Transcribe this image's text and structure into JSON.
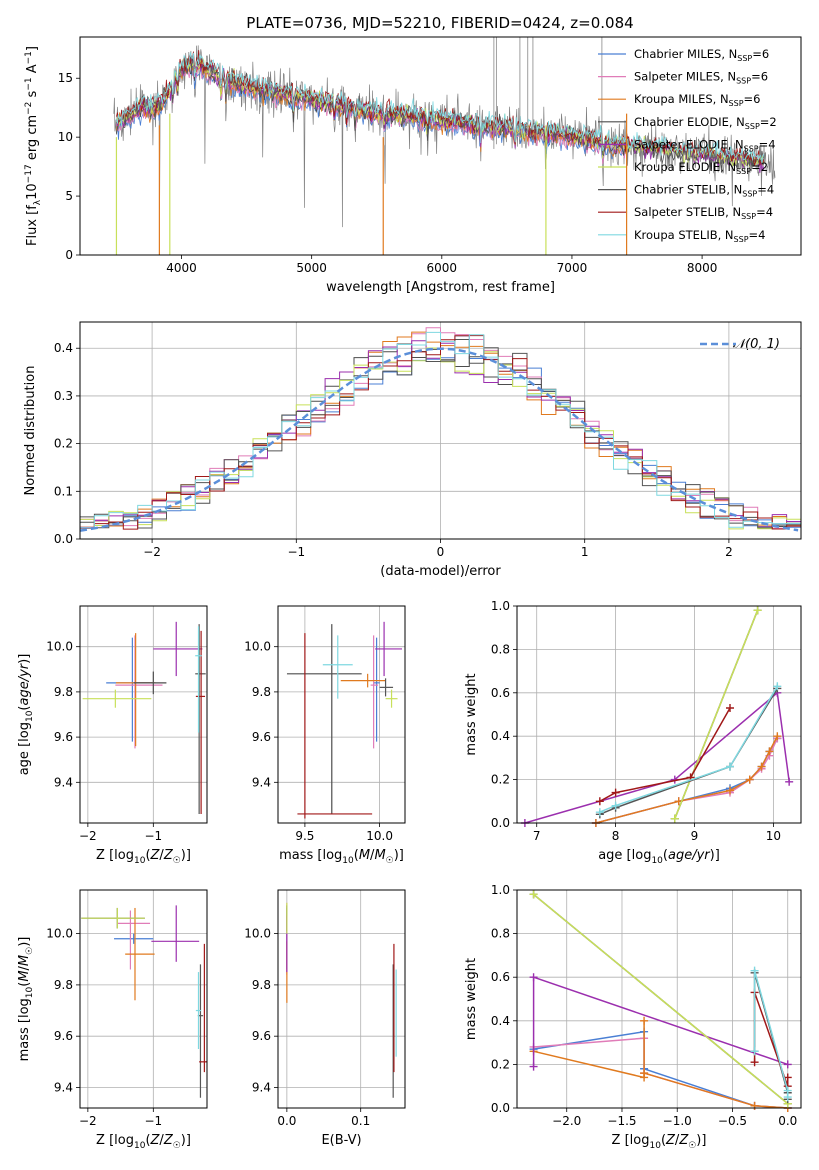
{
  "figure_title": "PLATE=0736, MJD=52210, FIBERID=0424, z=0.084",
  "colors": {
    "Chabrier MILES": "#4a7fd4",
    "Salpeter MILES": "#e07cb8",
    "Kroupa MILES": "#e07a1f",
    "Chabrier ELODIE": "#4d4d4d",
    "Salpeter ELODIE": "#9b2fae",
    "Kroupa ELODIE": "#c8e05a",
    "Chabrier STELIB": "#555555",
    "Salpeter STELIB": "#a01818",
    "Kroupa STELIB": "#7fd8e0"
  },
  "legend_spectrum": [
    {
      "name": "Chabrier MILES",
      "nssp": "6"
    },
    {
      "name": "Salpeter MILES",
      "nssp": "6"
    },
    {
      "name": "Kroupa MILES",
      "nssp": "6"
    },
    {
      "name": "Chabrier ELODIE",
      "nssp": "2"
    },
    {
      "name": "Salpeter ELODIE",
      "nssp": "4"
    },
    {
      "name": "Kroupa ELODIE",
      "nssp": "2"
    },
    {
      "name": "Chabrier STELIB",
      "nssp": "4"
    },
    {
      "name": "Salpeter STELIB",
      "nssp": "4"
    },
    {
      "name": "Kroupa STELIB",
      "nssp": "4"
    }
  ],
  "chart_data": [
    {
      "id": "spectrum",
      "type": "line",
      "ylabel": "Flux [f_λ10^-17 erg cm^-2 s^-1 A^-1]",
      "xlabel": "wavelength [Angstrom, rest frame]",
      "xlim": [
        3220,
        8760
      ],
      "ylim": [
        0,
        18.5
      ],
      "xticks": [
        4000,
        5000,
        6000,
        7000,
        8000
      ],
      "yticks": [
        0,
        5,
        10,
        15
      ],
      "data_continuum": [
        [
          3480,
          11.0
        ],
        [
          3600,
          11.8
        ],
        [
          3700,
          12.6
        ],
        [
          3800,
          12.3
        ],
        [
          3900,
          13.8
        ],
        [
          4000,
          15.8
        ],
        [
          4100,
          16.3
        ],
        [
          4200,
          15.6
        ],
        [
          4300,
          15.1
        ],
        [
          4500,
          14.3
        ],
        [
          4700,
          13.8
        ],
        [
          4900,
          13.4
        ],
        [
          5100,
          13.0
        ],
        [
          5300,
          12.5
        ],
        [
          5500,
          12.1
        ],
        [
          5800,
          11.7
        ],
        [
          6000,
          11.4
        ],
        [
          6300,
          11.0
        ],
        [
          6600,
          10.6
        ],
        [
          6900,
          10.2
        ],
        [
          7200,
          9.6
        ],
        [
          7500,
          9.1
        ],
        [
          7800,
          8.7
        ],
        [
          8000,
          8.5
        ],
        [
          8200,
          8.2
        ],
        [
          8400,
          7.9
        ],
        [
          8560,
          7.7
        ]
      ],
      "absorption_lines": [
        3934,
        3969,
        4102,
        4304,
        4341,
        4861,
        5175,
        5270,
        5335,
        5560,
        5890,
        6300,
        6563,
        6800,
        7240
      ],
      "model_dropouts": [
        3500,
        3830,
        3910,
        5550,
        6800,
        7420
      ]
    },
    {
      "id": "residuals",
      "type": "area",
      "ylabel": "Normed distribution",
      "xlabel": "(data-model)/error",
      "xlim": [
        -2.5,
        2.5
      ],
      "ylim": [
        0,
        0.455
      ],
      "xticks": [
        -2,
        -1,
        0,
        1,
        2
      ],
      "yticks": [
        0.0,
        0.1,
        0.2,
        0.3,
        0.4
      ],
      "bin_width": 0.1,
      "reference_curve": "N(0,1)"
    },
    {
      "id": "age-vs-Z",
      "type": "scatter",
      "ylabel": "age  [log10(age/yr)]",
      "xlabel": "Z [log10(Z/Z☉)]",
      "xlim": [
        -2.12,
        -0.18
      ],
      "ylim": [
        9.22,
        10.18
      ],
      "xticks": [
        -2,
        -1
      ],
      "yticks": [
        9.4,
        9.6,
        9.8,
        10.0
      ],
      "points": [
        {
          "series": "Chabrier MILES",
          "x": -1.32,
          "y": 9.84,
          "xerr": [
            0.4,
            0.3
          ],
          "yerr": [
            0.26,
            0.2
          ]
        },
        {
          "series": "Salpeter MILES",
          "x": -1.28,
          "y": 9.83,
          "xerr": [
            0.3,
            0.42
          ],
          "yerr": [
            0.28,
            0.22
          ]
        },
        {
          "series": "Kroupa MILES",
          "x": -1.27,
          "y": 9.84,
          "xerr": [
            0.3,
            0.3
          ],
          "yerr": [
            0.28,
            0.22
          ]
        },
        {
          "series": "Chabrier ELODIE",
          "x": -1.0,
          "y": 9.84,
          "xerr": [
            0.3,
            0.2
          ],
          "yerr": [
            0.05,
            0.05
          ]
        },
        {
          "series": "Salpeter ELODIE",
          "x": -0.65,
          "y": 9.99,
          "xerr": [
            0.35,
            0.4
          ],
          "yerr": [
            0.12,
            0.12
          ]
        },
        {
          "series": "Kroupa ELODIE",
          "x": -1.58,
          "y": 9.77,
          "xerr": [
            0.5,
            0.55
          ],
          "yerr": [
            0.04,
            0.04
          ]
        },
        {
          "series": "Chabrier STELIB",
          "x": -0.3,
          "y": 9.88,
          "xerr": [
            0.06,
            0.1
          ],
          "yerr": [
            0.62,
            0.22
          ]
        },
        {
          "series": "Salpeter STELIB",
          "x": -0.27,
          "y": 9.78,
          "xerr": [
            0.08,
            0.06
          ],
          "yerr": [
            0.52,
            0.29
          ]
        },
        {
          "series": "Kroupa STELIB",
          "x": -0.31,
          "y": 9.96,
          "xerr": [
            0.05,
            0.05
          ],
          "yerr": [
            0.34,
            0.13
          ]
        }
      ]
    },
    {
      "id": "age-vs-mass",
      "type": "scatter",
      "xlabel": "mass [log10(M/M☉)]",
      "xlim": [
        9.32,
        10.17
      ],
      "ylim": [
        9.22,
        10.18
      ],
      "xticks": [
        9.5,
        10.0
      ],
      "yticks": [
        9.4,
        9.6,
        9.8,
        10.0
      ],
      "points": [
        {
          "series": "Chabrier MILES",
          "x": 9.98,
          "y": 9.84,
          "xerr": [
            0.02,
            0.02
          ],
          "yerr": [
            0.26,
            0.2
          ]
        },
        {
          "series": "Salpeter MILES",
          "x": 9.96,
          "y": 9.83,
          "xerr": [
            0.02,
            0.03
          ],
          "yerr": [
            0.28,
            0.22
          ]
        },
        {
          "series": "Kroupa MILES",
          "x": 9.92,
          "y": 9.85,
          "xerr": [
            0.18,
            0.12
          ],
          "yerr": [
            0.03,
            0.03
          ]
        },
        {
          "series": "Chabrier ELODIE",
          "x": 9.68,
          "y": 9.88,
          "xerr": [
            0.3,
            0.2
          ],
          "yerr": [
            0.62,
            0.22
          ]
        },
        {
          "series": "Salpeter ELODIE",
          "x": 10.03,
          "y": 9.99,
          "xerr": [
            0.06,
            0.12
          ],
          "yerr": [
            0.12,
            0.12
          ]
        },
        {
          "series": "Kroupa ELODIE",
          "x": 10.08,
          "y": 9.77,
          "xerr": [
            0.04,
            0.04
          ],
          "yerr": [
            0.04,
            0.04
          ]
        },
        {
          "series": "Chabrier STELIB",
          "x": 10.04,
          "y": 9.82,
          "xerr": [
            0.04,
            0.05
          ],
          "yerr": [
            0.04,
            0.04
          ]
        },
        {
          "series": "Salpeter STELIB",
          "x": 9.5,
          "y": 9.26,
          "xerr": [
            0.05,
            0.45
          ],
          "yerr": [
            0.02,
            0.8
          ]
        },
        {
          "series": "Kroupa STELIB",
          "x": 9.72,
          "y": 9.92,
          "xerr": [
            0.1,
            0.1
          ],
          "yerr": [
            0.15,
            0.13
          ]
        }
      ]
    },
    {
      "id": "weight-vs-age",
      "type": "line",
      "ylabel": "mass weight",
      "xlabel": "age  [log10(age/yr)]",
      "xlim": [
        6.75,
        10.35
      ],
      "ylim": [
        0,
        1.0
      ],
      "xticks": [
        7,
        8,
        9,
        10
      ],
      "yticks": [
        0.0,
        0.2,
        0.4,
        0.6,
        0.8,
        1.0
      ],
      "series": [
        {
          "name": "Chabrier MILES",
          "x": [
            7.75,
            8.8,
            9.45,
            9.7,
            9.85,
            9.95,
            10.05
          ],
          "y": [
            0.0,
            0.1,
            0.16,
            0.2,
            0.26,
            0.33,
            0.39
          ]
        },
        {
          "name": "Salpeter MILES",
          "x": [
            7.75,
            8.8,
            9.45,
            9.7,
            9.85,
            9.95,
            10.05
          ],
          "y": [
            0.0,
            0.1,
            0.14,
            0.2,
            0.25,
            0.31,
            0.39
          ]
        },
        {
          "name": "Kroupa MILES",
          "x": [
            7.75,
            8.8,
            9.45,
            9.7,
            9.85,
            9.95,
            10.05
          ],
          "y": [
            0.0,
            0.1,
            0.15,
            0.2,
            0.26,
            0.33,
            0.4
          ]
        },
        {
          "name": "Chabrier ELODIE",
          "x": [
            8.75,
            9.8
          ],
          "y": [
            0.02,
            0.98
          ]
        },
        {
          "name": "Salpeter ELODIE",
          "x": [
            6.85,
            8.75,
            10.05,
            10.2
          ],
          "y": [
            0.0,
            0.2,
            0.6,
            0.19
          ]
        },
        {
          "name": "Kroupa ELODIE",
          "x": [
            8.75,
            9.8
          ],
          "y": [
            0.02,
            0.98
          ]
        },
        {
          "name": "Chabrier STELIB",
          "x": [
            7.8,
            8.0,
            9.45,
            10.05
          ],
          "y": [
            0.04,
            0.07,
            0.26,
            0.62
          ]
        },
        {
          "name": "Salpeter STELIB",
          "x": [
            7.8,
            8.0,
            8.95,
            9.45
          ],
          "y": [
            0.1,
            0.14,
            0.21,
            0.53
          ]
        },
        {
          "name": "Kroupa STELIB",
          "x": [
            7.8,
            8.0,
            9.45,
            10.05
          ],
          "y": [
            0.05,
            0.08,
            0.26,
            0.63
          ]
        }
      ]
    },
    {
      "id": "mass-vs-Z",
      "type": "scatter",
      "ylabel": "mass [log10(M/M☉)]",
      "xlabel": "Z [log10(Z/Z☉)]",
      "xlim": [
        -2.12,
        -0.18
      ],
      "ylim": [
        9.32,
        10.17
      ],
      "xticks": [
        -2,
        -1
      ],
      "yticks": [
        9.4,
        9.6,
        9.8,
        10.0
      ],
      "points": [
        {
          "series": "Chabrier MILES",
          "x": -1.3,
          "y": 9.98,
          "xerr": [
            0.3,
            0.3
          ],
          "yerr": [
            0.02,
            0.02
          ]
        },
        {
          "series": "Salpeter MILES",
          "x": -1.35,
          "y": 10.04,
          "xerr": [
            0.2,
            0.3
          ],
          "yerr": [
            0.18,
            0.05
          ]
        },
        {
          "series": "Kroupa MILES",
          "x": -1.28,
          "y": 9.92,
          "xerr": [
            0.15,
            0.3
          ],
          "yerr": [
            0.18,
            0.18
          ]
        },
        {
          "series": "Chabrier ELODIE",
          "x": -1.55,
          "y": 10.06,
          "xerr": [
            0.55,
            0.42
          ],
          "yerr": [
            0.04,
            0.04
          ]
        },
        {
          "series": "Salpeter ELODIE",
          "x": -0.65,
          "y": 9.97,
          "xerr": [
            0.38,
            0.35
          ],
          "yerr": [
            0.08,
            0.14
          ]
        },
        {
          "series": "Kroupa ELODIE",
          "x": -1.55,
          "y": 10.06,
          "xerr": [
            0.55,
            0.42
          ],
          "yerr": [
            0.04,
            0.04
          ]
        },
        {
          "series": "Chabrier STELIB",
          "x": -0.28,
          "y": 9.68,
          "xerr": [
            0.04,
            0.04
          ],
          "yerr": [
            0.32,
            0.2
          ]
        },
        {
          "series": "Salpeter STELIB",
          "x": -0.22,
          "y": 9.5,
          "xerr": [
            0.08,
            0.04
          ],
          "yerr": [
            0.04,
            0.46
          ]
        },
        {
          "series": "Kroupa STELIB",
          "x": -0.31,
          "y": 9.7,
          "xerr": [
            0.04,
            0.04
          ],
          "yerr": [
            0.15,
            0.15
          ]
        }
      ]
    },
    {
      "id": "mass-vs-ebv",
      "type": "scatter",
      "xlabel": "E(B-V)",
      "xlim": [
        -0.012,
        0.16
      ],
      "ylim": [
        9.32,
        10.17
      ],
      "xticks": [
        0.0,
        0.1
      ],
      "yticks": [
        9.4,
        9.6,
        9.8,
        10.0
      ],
      "points": [
        {
          "series": "Chabrier MILES",
          "x": 0.0,
          "y": 9.98,
          "xerr": [
            0,
            0
          ],
          "yerr": [
            0.12,
            0.12
          ]
        },
        {
          "series": "Salpeter MILES",
          "x": 0.0,
          "y": 10.0,
          "xerr": [
            0,
            0
          ],
          "yerr": [
            0.16,
            0.12
          ]
        },
        {
          "series": "Kroupa MILES",
          "x": 0.0,
          "y": 9.85,
          "xerr": [
            0,
            0
          ],
          "yerr": [
            0.12,
            0.12
          ]
        },
        {
          "series": "Chabrier ELODIE",
          "x": 0.0,
          "y": 10.06,
          "xerr": [
            0,
            0
          ],
          "yerr": [
            0.05,
            0.05
          ]
        },
        {
          "series": "Salpeter ELODIE",
          "x": 0.0,
          "y": 9.97,
          "xerr": [
            0,
            0
          ],
          "yerr": [
            0.12,
            0.1
          ]
        },
        {
          "series": "Kroupa ELODIE",
          "x": 0.0,
          "y": 10.06,
          "xerr": [
            0,
            0
          ],
          "yerr": [
            0.06,
            0.06
          ]
        },
        {
          "series": "Chabrier STELIB",
          "x": 0.144,
          "y": 9.62,
          "xerr": [
            0,
            0
          ],
          "yerr": [
            0.26,
            0.26
          ]
        },
        {
          "series": "Salpeter STELIB",
          "x": 0.145,
          "y": 9.7,
          "xerr": [
            0,
            0
          ],
          "yerr": [
            0.24,
            0.26
          ]
        },
        {
          "series": "Kroupa STELIB",
          "x": 0.148,
          "y": 9.72,
          "xerr": [
            0,
            0
          ],
          "yerr": [
            0.2,
            0.14
          ]
        }
      ]
    },
    {
      "id": "weight-vs-Z",
      "type": "line",
      "ylabel": "mass weight",
      "xlabel": "Z [log10(Z/Z☉)]",
      "xlim": [
        -2.45,
        0.12
      ],
      "ylim": [
        0,
        1.0
      ],
      "xticks": [
        -2.0,
        -1.5,
        -1.0,
        -0.5,
        0.0
      ],
      "yticks": [
        0.0,
        0.2,
        0.4,
        0.6,
        0.8,
        1.0
      ],
      "series": [
        {
          "name": "Chabrier MILES",
          "x": [
            -2.3,
            -1.3,
            -1.3,
            -0.3,
            0.0
          ],
          "y": [
            0.27,
            0.35,
            0.18,
            0.01,
            0.0
          ]
        },
        {
          "name": "Salpeter MILES",
          "x": [
            -2.3,
            -1.3,
            -1.3,
            -0.3,
            0.0
          ],
          "y": [
            0.28,
            0.32,
            0.16,
            0.01,
            0.0
          ]
        },
        {
          "name": "Kroupa MILES",
          "x": [
            -2.3,
            -1.3,
            -1.3,
            -1.3,
            -0.3,
            0.0
          ],
          "y": [
            0.26,
            0.14,
            0.4,
            0.16,
            0.01,
            0.0
          ]
        },
        {
          "name": "Chabrier ELODIE",
          "x": [
            -2.3,
            0.0
          ],
          "y": [
            0.98,
            0.02
          ]
        },
        {
          "name": "Salpeter ELODIE",
          "x": [
            -2.3,
            -2.3,
            0.0
          ],
          "y": [
            0.19,
            0.6,
            0.2
          ]
        },
        {
          "name": "Kroupa ELODIE",
          "x": [
            -2.3,
            0.0
          ],
          "y": [
            0.98,
            0.02
          ]
        },
        {
          "name": "Chabrier STELIB",
          "x": [
            -0.3,
            -0.3,
            0.0,
            0.0
          ],
          "y": [
            0.26,
            0.62,
            0.07,
            0.04
          ]
        },
        {
          "name": "Salpeter STELIB",
          "x": [
            -0.3,
            -0.3,
            0.0,
            0.0
          ],
          "y": [
            0.21,
            0.53,
            0.1,
            0.14
          ]
        },
        {
          "name": "Kroupa STELIB",
          "x": [
            -0.3,
            -0.3,
            0.0,
            0.0
          ],
          "y": [
            0.26,
            0.63,
            0.08,
            0.05
          ]
        }
      ]
    }
  ]
}
